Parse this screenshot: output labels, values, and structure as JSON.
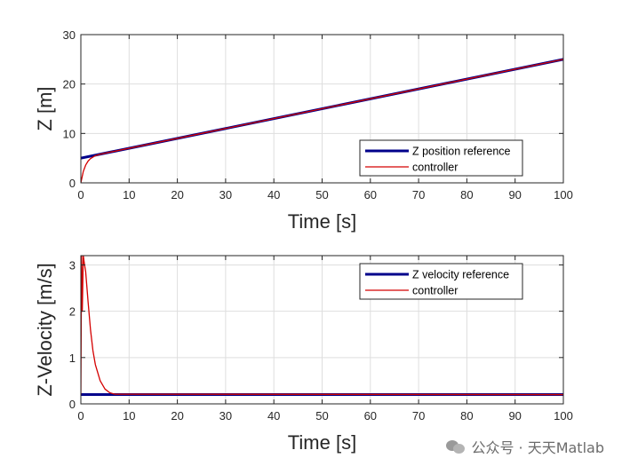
{
  "chart_data": [
    {
      "type": "line",
      "xlabel": "Time [s]",
      "ylabel": "Z [m]",
      "xlim": [
        0,
        100
      ],
      "ylim": [
        0,
        30
      ],
      "xticks": [
        0,
        10,
        20,
        30,
        40,
        50,
        60,
        70,
        80,
        90,
        100
      ],
      "yticks": [
        0,
        10,
        20,
        30
      ],
      "grid": true,
      "legend_position": "bottom-right",
      "series": [
        {
          "name": "Z position reference",
          "color": "#00008b",
          "x": [
            0,
            100
          ],
          "y": [
            5,
            25
          ]
        },
        {
          "name": "controller",
          "color": "#d40000",
          "x": [
            0,
            0.5,
            1,
            1.5,
            2,
            3,
            4,
            5,
            100
          ],
          "y": [
            0,
            2.3,
            3.6,
            4.4,
            4.9,
            5.5,
            5.8,
            6.0,
            25
          ]
        }
      ]
    },
    {
      "type": "line",
      "xlabel": "Time [s]",
      "ylabel": "Z-Velocity [m/s]",
      "xlim": [
        0,
        100
      ],
      "ylim": [
        0,
        3.2
      ],
      "xticks": [
        0,
        10,
        20,
        30,
        40,
        50,
        60,
        70,
        80,
        90,
        100
      ],
      "yticks": [
        0,
        1,
        2,
        3
      ],
      "grid": true,
      "legend_position": "top-right",
      "series": [
        {
          "name": "Z velocity reference",
          "color": "#00008b",
          "x": [
            0,
            100
          ],
          "y": [
            0.2,
            0.2
          ]
        },
        {
          "name": "controller",
          "color": "#d40000",
          "x": [
            0,
            0.15,
            0.3,
            0.5,
            0.7,
            1,
            1.5,
            2,
            2.5,
            3,
            4,
            5,
            6,
            7,
            100
          ],
          "y": [
            0.2,
            3.2,
            2.0,
            3.2,
            3.05,
            2.85,
            2.2,
            1.6,
            1.15,
            0.85,
            0.5,
            0.32,
            0.24,
            0.21,
            0.2
          ]
        }
      ]
    }
  ],
  "watermark": {
    "text": "公众号 · 天天Matlab",
    "icon": "wechat-icon"
  }
}
